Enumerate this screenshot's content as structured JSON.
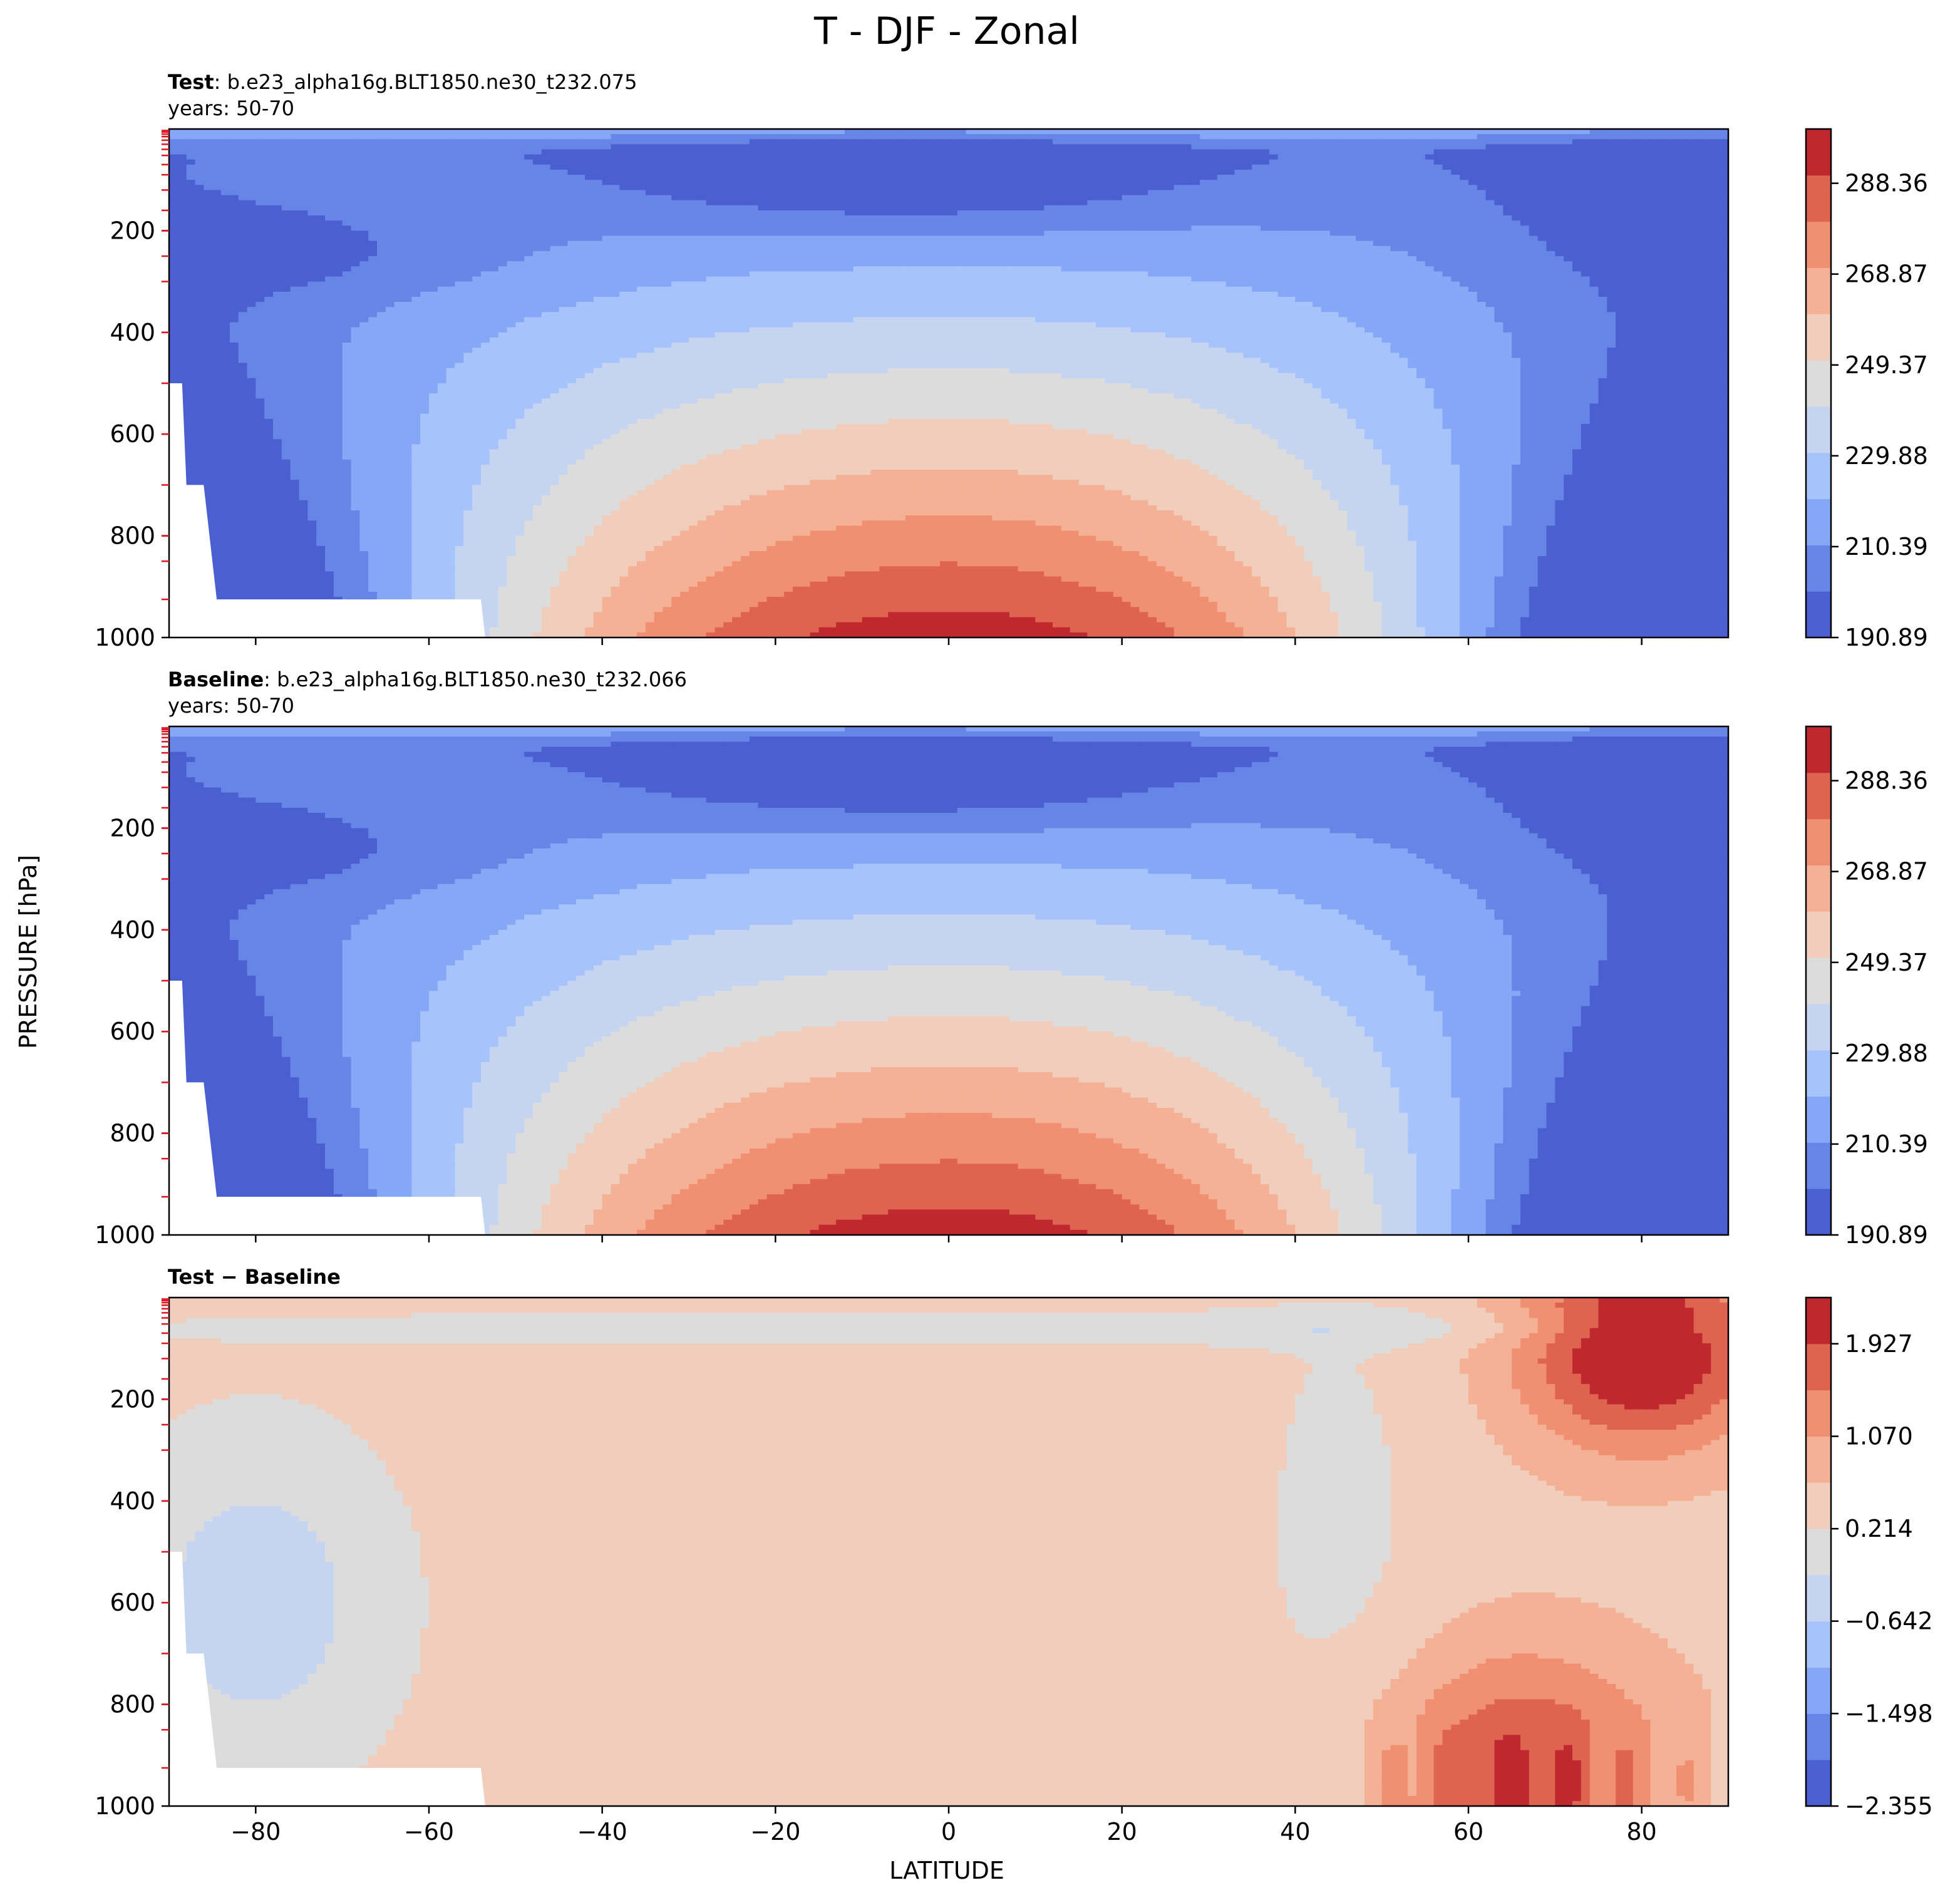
{
  "chart_data": {
    "title": "T - DJF - Zonal",
    "xlabel": "LATITUDE",
    "ylabel": "PRESSURE [hPa]",
    "xlim": [
      -90,
      90
    ],
    "ylim": [
      0,
      1000
    ],
    "x_ticks": [
      "−80",
      "−60",
      "−40",
      "−20",
      "0",
      "20",
      "40",
      "60",
      "80"
    ],
    "x_tick_values": [
      -80,
      -60,
      -40,
      -20,
      0,
      20,
      40,
      60,
      80
    ],
    "y_ticks": [
      "200",
      "400",
      "600",
      "800",
      "1000"
    ],
    "y_tick_values": [
      200,
      400,
      600,
      800,
      1000
    ],
    "panels": [
      {
        "type": "heatmap",
        "label_bold": "Test",
        "label_rest": ": b.e23_alpha16g.BLT1850.ne30_t232.075",
        "years": "years: 50-70",
        "colorbar_ticks": [
          "288.36",
          "268.87",
          "249.37",
          "229.88",
          "210.39",
          "190.89"
        ],
        "colorbar_range": [
          190.89,
          300.0
        ],
        "colorbar_colors": [
          "#4a5fd0",
          "#6785e6",
          "#86a6f6",
          "#a7c3fb",
          "#c5d5f1",
          "#dddcdc",
          "#f1cdbb",
          "#f5b195",
          "#f08f71",
          "#de6450",
          "#c0282f"
        ],
        "palette": "warm"
      },
      {
        "type": "heatmap",
        "label_bold": "Baseline",
        "label_rest": ": b.e23_alpha16g.BLT1850.ne30_t232.066",
        "years": "years: 50-70",
        "colorbar_ticks": [
          "288.36",
          "268.87",
          "249.37",
          "229.88",
          "210.39",
          "190.89"
        ],
        "colorbar_range": [
          190.89,
          300.0
        ],
        "colorbar_colors": [
          "#4a5fd0",
          "#6785e6",
          "#86a6f6",
          "#a7c3fb",
          "#c5d5f1",
          "#dddcdc",
          "#f1cdbb",
          "#f5b195",
          "#f08f71",
          "#de6450",
          "#c0282f"
        ],
        "palette": "warm"
      },
      {
        "type": "heatmap",
        "label_bold": "Test − Baseline",
        "label_rest": "",
        "years": "",
        "colorbar_ticks": [
          "1.927",
          "1.070",
          "0.214",
          "−0.642",
          "−1.498",
          "−2.355"
        ],
        "colorbar_range": [
          -2.355,
          2.355
        ],
        "colorbar_colors": [
          "#4a5fd0",
          "#6785e6",
          "#86a6f6",
          "#a7c3fb",
          "#c5d5f1",
          "#dddcdc",
          "#f1cdbb",
          "#f5b195",
          "#f08f71",
          "#de6450",
          "#c0282f"
        ],
        "palette": "diff"
      }
    ]
  }
}
